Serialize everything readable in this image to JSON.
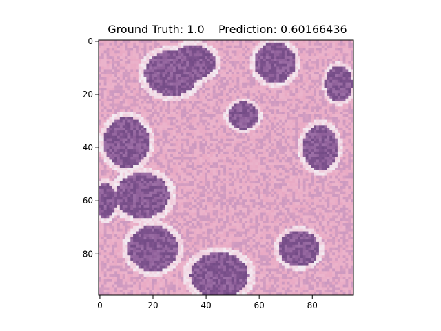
{
  "title": {
    "ground_truth_label": "Ground Truth:",
    "ground_truth_value": "1.0",
    "prediction_label": "Prediction:",
    "prediction_value": "0.60166436"
  },
  "image": {
    "description_name": "histopathology-patch",
    "grid_size": 96,
    "colors": {
      "pink": "#e9a9c4",
      "light_pink": "#f0c9da",
      "lavender": "#b68cbd",
      "purple": "#8d5d98",
      "dark_purple": "#6c4681",
      "white": "#f3eef4"
    }
  },
  "axes": {
    "x_ticks": [
      "0",
      "20",
      "40",
      "60",
      "80"
    ],
    "y_ticks": [
      "0",
      "20",
      "40",
      "60",
      "80"
    ]
  }
}
